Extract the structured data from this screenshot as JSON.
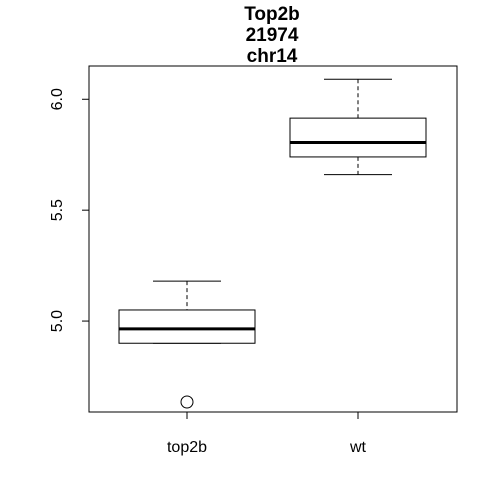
{
  "chart_data": {
    "type": "boxplot",
    "title": [
      "Top2b",
      "21974",
      "chr14"
    ],
    "xlabel": "",
    "ylabel": "",
    "categories": [
      "top2b",
      "wt"
    ],
    "ylim": [
      4.59,
      6.15
    ],
    "yticks": [
      5.0,
      5.5,
      6.0
    ],
    "ytick_labels": [
      "5.0",
      "5.5",
      "6.0"
    ],
    "grid": false,
    "boxes": [
      {
        "name": "top2b",
        "whisker_low": 4.9,
        "q1": 4.9,
        "median": 4.965,
        "q3": 5.05,
        "whisker_high": 5.18,
        "outliers": [
          4.635
        ]
      },
      {
        "name": "wt",
        "whisker_low": 5.66,
        "q1": 5.74,
        "median": 5.805,
        "q3": 5.915,
        "whisker_high": 6.09,
        "outliers": []
      }
    ]
  }
}
